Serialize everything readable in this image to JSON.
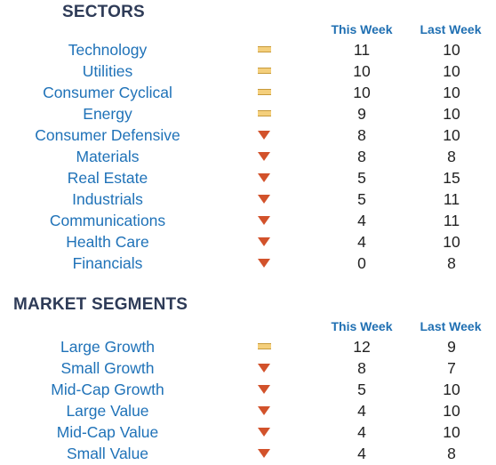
{
  "sectors": {
    "title": "SECTORS",
    "col_this_week": "This Week",
    "col_last_week": "Last Week",
    "rows": [
      {
        "name": "Technology",
        "trend": "flat",
        "this_week": "11",
        "last_week": "10"
      },
      {
        "name": "Utilities",
        "trend": "flat",
        "this_week": "10",
        "last_week": "10"
      },
      {
        "name": "Consumer Cyclical",
        "trend": "flat",
        "this_week": "10",
        "last_week": "10"
      },
      {
        "name": "Energy",
        "trend": "flat",
        "this_week": "9",
        "last_week": "10"
      },
      {
        "name": "Consumer Defensive",
        "trend": "down",
        "this_week": "8",
        "last_week": "10"
      },
      {
        "name": "Materials",
        "trend": "down",
        "this_week": "8",
        "last_week": "8"
      },
      {
        "name": "Real Estate",
        "trend": "down",
        "this_week": "5",
        "last_week": "15"
      },
      {
        "name": "Industrials",
        "trend": "down",
        "this_week": "5",
        "last_week": "11"
      },
      {
        "name": "Communications",
        "trend": "down",
        "this_week": "4",
        "last_week": "11"
      },
      {
        "name": "Health Care",
        "trend": "down",
        "this_week": "4",
        "last_week": "10"
      },
      {
        "name": "Financials",
        "trend": "down",
        "this_week": "0",
        "last_week": "8"
      }
    ]
  },
  "segments": {
    "title": "MARKET SEGMENTS",
    "col_this_week": "This Week",
    "col_last_week": "Last Week",
    "rows": [
      {
        "name": "Large Growth",
        "trend": "flat",
        "this_week": "12",
        "last_week": "9"
      },
      {
        "name": "Small Growth",
        "trend": "down",
        "this_week": "8",
        "last_week": "7"
      },
      {
        "name": "Mid-Cap Growth",
        "trend": "down",
        "this_week": "5",
        "last_week": "10"
      },
      {
        "name": "Large Value",
        "trend": "down",
        "this_week": "4",
        "last_week": "10"
      },
      {
        "name": "Mid-Cap Value",
        "trend": "down",
        "this_week": "4",
        "last_week": "10"
      },
      {
        "name": "Small Value",
        "trend": "down",
        "this_week": "4",
        "last_week": "8"
      }
    ]
  },
  "icons": {
    "flat": "flat-trend-icon",
    "down": "down-trend-icon"
  },
  "colors": {
    "title": "#2e3b57",
    "header": "#1f6fb2",
    "row_label": "#1f72b8",
    "value": "#222222",
    "flat_icon": "#f4cf7c",
    "down_icon": "#d2522b"
  }
}
